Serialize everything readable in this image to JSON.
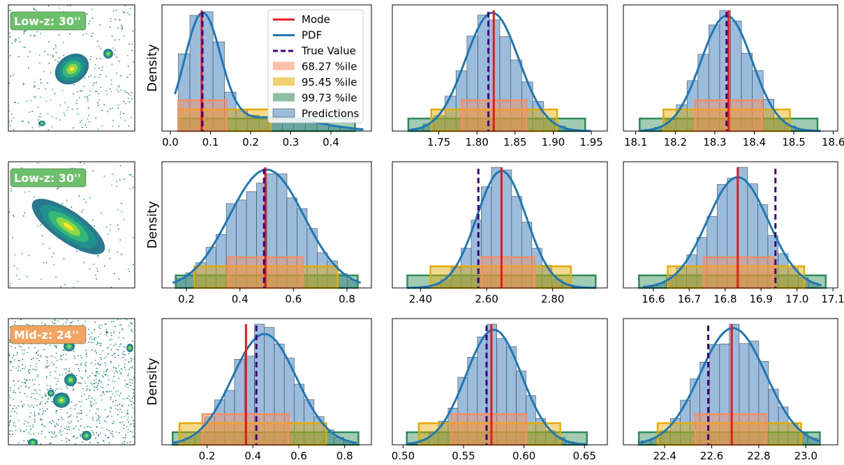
{
  "chart_data": {
    "type": "histogram-grid",
    "legend": {
      "items": [
        {
          "key": "mode",
          "label": "Mode",
          "color": "#e41a1c"
        },
        {
          "key": "pdf",
          "label": "PDF",
          "color": "#1f77b4"
        },
        {
          "key": "true",
          "label": "True Value",
          "color": "#3f007d"
        },
        {
          "key": "p68",
          "label": "68.27 %ile",
          "color": "#fc8d62"
        },
        {
          "key": "p95",
          "label": "95.45 %ile",
          "color": "#e6ab02"
        },
        {
          "key": "p99",
          "label": "99.73 %ile",
          "color": "#2e8b57"
        },
        {
          "key": "pred",
          "label": "Predictions",
          "color": "#7aa6cf"
        }
      ]
    },
    "ylabel": "Density",
    "rows": [
      {
        "badge": "Low-z: 30''",
        "badge_color": "#6cc06c",
        "image_type": "compact",
        "panels": [
          {
            "xlim": [
              0.0,
              0.48
            ],
            "ticks": [
              0.0,
              0.1,
              0.2,
              0.3,
              0.4
            ],
            "tick_labels": [
              "0.0",
              "0.1",
              "0.2",
              "0.3",
              "0.4"
            ],
            "mode": 0.078,
            "true_value": 0.08,
            "p68": [
              0.02,
              0.14
            ],
            "p95": [
              0.02,
              0.25
            ],
            "p99": [
              0.02,
              0.46
            ],
            "kde": {
              "mean": 0.08,
              "sd": 0.045,
              "tail": 0.12,
              "tail_sd": 0.11
            },
            "hist_range": [
              0.02,
              0.48
            ],
            "bins": 16
          },
          {
            "xlim": [
              1.7,
              1.96
            ],
            "ticks": [
              1.75,
              1.8,
              1.85,
              1.9,
              1.95
            ],
            "tick_labels": [
              "1.75",
              "1.80",
              "1.85",
              "1.90",
              "1.95"
            ],
            "mode": 1.822,
            "true_value": 1.815,
            "p68": [
              1.78,
              1.865
            ],
            "p95": [
              1.74,
              1.905
            ],
            "p99": [
              1.71,
              1.942
            ],
            "kde": {
              "mean": 1.82,
              "sd": 0.035,
              "tail": 0,
              "tail_sd": 0
            },
            "hist_range": [
              1.715,
              1.945
            ],
            "bins": 16
          },
          {
            "xlim": [
              18.09,
              18.59
            ],
            "ticks": [
              18.1,
              18.2,
              18.3,
              18.4,
              18.5,
              18.6
            ],
            "tick_labels": [
              "18.1",
              "18.2",
              "18.3",
              "18.4",
              "18.5",
              "18.6"
            ],
            "mode": 18.335,
            "true_value": 18.33,
            "p68": [
              18.25,
              18.42
            ],
            "p95": [
              18.17,
              18.49
            ],
            "p99": [
              18.11,
              18.56
            ],
            "kde": {
              "mean": 18.33,
              "sd": 0.065,
              "tail": 0,
              "tail_sd": 0
            },
            "hist_range": [
              18.12,
              18.56
            ],
            "bins": 16
          }
        ]
      },
      {
        "badge": "Low-z: 30''",
        "badge_color": "#6cc06c",
        "image_type": "elongated",
        "panels": [
          {
            "xlim": [
              0.14,
              0.86
            ],
            "ticks": [
              0.2,
              0.4,
              0.6,
              0.8
            ],
            "tick_labels": [
              "0.2",
              "0.4",
              "0.6",
              "0.8"
            ],
            "mode": 0.495,
            "true_value": 0.49,
            "p68": [
              0.355,
              0.635
            ],
            "p95": [
              0.23,
              0.765
            ],
            "p99": [
              0.16,
              0.84
            ],
            "kde": {
              "mean": 0.5,
              "sd": 0.14,
              "tail": 0,
              "tail_sd": 0
            },
            "hist_range": [
              0.16,
              0.84
            ],
            "bins": 18
          },
          {
            "xlim": [
              2.34,
              2.94
            ],
            "ticks": [
              2.4,
              2.6,
              2.8
            ],
            "tick_labels": [
              "2.40",
              "2.60",
              "2.80"
            ],
            "mode": 2.645,
            "true_value": 2.575,
            "p68": [
              2.585,
              2.745
            ],
            "p95": [
              2.43,
              2.855
            ],
            "p99": [
              2.36,
              2.93
            ],
            "kde": {
              "mean": 2.645,
              "sd": 0.075,
              "tail": 0,
              "tail_sd": 0
            },
            "hist_range": [
              2.37,
              2.92
            ],
            "bins": 18
          },
          {
            "xlim": [
              16.54,
              17.09
            ],
            "ticks": [
              16.6,
              16.7,
              16.8,
              16.9,
              17.0,
              17.1
            ],
            "tick_labels": [
              "16.6",
              "16.7",
              "16.8",
              "16.9",
              "17.0",
              "17.1"
            ],
            "mode": 16.835,
            "true_value": 16.94,
            "p68": [
              16.74,
              16.935
            ],
            "p95": [
              16.64,
              17.02
            ],
            "p99": [
              16.56,
              17.08
            ],
            "kde": {
              "mean": 16.835,
              "sd": 0.085,
              "tail": 0,
              "tail_sd": 0
            },
            "hist_range": [
              16.58,
              17.06
            ],
            "bins": 17
          }
        ]
      },
      {
        "badge": "Mid-z: 24''",
        "badge_color": "#f4a460",
        "image_type": "field",
        "panels": [
          {
            "xlim": [
              0.04,
              0.88
            ],
            "ticks": [
              0.2,
              0.4,
              0.6,
              0.8
            ],
            "tick_labels": [
              "0.2",
              "0.4",
              "0.6",
              "0.8"
            ],
            "mode": 0.37,
            "true_value": 0.415,
            "p68": [
              0.18,
              0.555
            ],
            "p95": [
              0.08,
              0.72
            ],
            "p99": [
              0.05,
              0.86
            ],
            "kde": {
              "mean": 0.45,
              "sd": 0.14,
              "tail": 0,
              "tail_sd": 0
            },
            "hist_range": [
              0.06,
              0.84
            ],
            "bins": 18
          },
          {
            "xlim": [
              0.498,
              0.662
            ],
            "ticks": [
              0.5,
              0.55,
              0.6,
              0.65
            ],
            "tick_labels": [
              "0.50",
              "0.55",
              "0.60",
              "0.65"
            ],
            "mode": 0.573,
            "true_value": 0.569,
            "p68": [
              0.54,
              0.602
            ],
            "p95": [
              0.513,
              0.63
            ],
            "p99": [
              0.503,
              0.652
            ],
            "kde": {
              "mean": 0.575,
              "sd": 0.023,
              "tail": 0,
              "tail_sd": 0
            },
            "hist_range": [
              0.505,
              0.65
            ],
            "bins": 18
          },
          {
            "xlim": [
              22.26,
              23.1
            ],
            "ticks": [
              22.4,
              22.6,
              22.8,
              23.0
            ],
            "tick_labels": [
              "22.4",
              "22.6",
              "22.8",
              "23.0"
            ],
            "mode": 22.685,
            "true_value": 22.585,
            "p68": [
              22.53,
              22.83
            ],
            "p95": [
              22.37,
              22.98
            ],
            "p99": [
              22.29,
              23.06
            ],
            "kde": {
              "mean": 22.69,
              "sd": 0.14,
              "tail": 0,
              "tail_sd": 0
            },
            "hist_range": [
              22.3,
              23.05
            ],
            "bins": 18
          }
        ]
      }
    ]
  }
}
